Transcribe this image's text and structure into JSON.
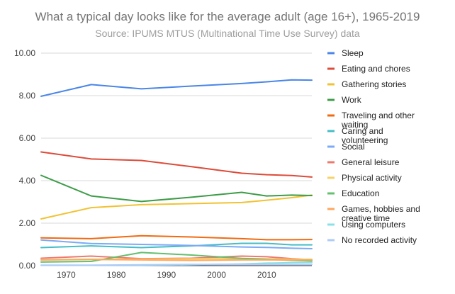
{
  "chart_data": {
    "type": "line",
    "title": "What a typical day looks like for the average adult (age 16+), 1965-2019",
    "subtitle": "Source: IPUMS MTUS (Multinational Time Use Survey) data",
    "xlabel": "",
    "ylabel": "",
    "xlim": [
      1965,
      2019
    ],
    "ylim": [
      0,
      10
    ],
    "y_ticks": [
      "0.00",
      "2.00",
      "4.00",
      "6.00",
      "8.00",
      "10.00"
    ],
    "x_ticks": [
      "1970",
      "1980",
      "1990",
      "2000",
      "2010"
    ],
    "grid": "horizontal",
    "legend_position": "right",
    "x": [
      1965,
      1975,
      1985,
      1995,
      2005,
      2010,
      2015,
      2019
    ],
    "series": [
      {
        "name": "Sleep",
        "color": "#4a86e8",
        "values": [
          7.97,
          8.52,
          8.32,
          8.45,
          8.57,
          8.65,
          8.74,
          8.73
        ]
      },
      {
        "name": "Eating and chores",
        "color": "#dd4b39",
        "values": [
          5.35,
          5.02,
          4.95,
          4.66,
          4.35,
          4.28,
          4.24,
          4.17
        ]
      },
      {
        "name": "Gathering stories",
        "color": "#f1c232",
        "values": [
          2.2,
          2.73,
          2.87,
          2.92,
          2.97,
          3.08,
          3.2,
          3.32
        ]
      },
      {
        "name": "Work",
        "color": "#3d9c48",
        "values": [
          4.25,
          3.28,
          3.02,
          3.22,
          3.45,
          3.28,
          3.32,
          3.3
        ]
      },
      {
        "name": "Traveling and other waiting",
        "color": "#f26a10",
        "values": [
          1.31,
          1.27,
          1.41,
          1.35,
          1.27,
          1.22,
          1.22,
          1.23
        ]
      },
      {
        "name": "Caring and volunteering",
        "color": "#46bdc6",
        "values": [
          0.85,
          0.93,
          0.85,
          0.93,
          1.05,
          1.05,
          0.98,
          0.98
        ]
      },
      {
        "name": "Social",
        "color": "#7baaf7",
        "values": [
          1.21,
          1.04,
          1.0,
          0.95,
          0.88,
          0.86,
          0.82,
          0.8
        ]
      },
      {
        "name": "General leisure",
        "color": "#ee7a6e",
        "values": [
          0.35,
          0.45,
          0.33,
          0.35,
          0.45,
          0.42,
          0.33,
          0.28
        ]
      },
      {
        "name": "Physical activity",
        "color": "#fad165",
        "values": [
          0.27,
          0.3,
          0.3,
          0.32,
          0.34,
          0.32,
          0.3,
          0.3
        ]
      },
      {
        "name": "Education",
        "color": "#63c06f",
        "values": [
          0.17,
          0.2,
          0.62,
          0.5,
          0.34,
          0.3,
          0.25,
          0.22
        ]
      },
      {
        "name": "Games, hobbies and creative time",
        "color": "#ffa65e",
        "values": [
          0.27,
          0.29,
          0.27,
          0.25,
          0.27,
          0.27,
          0.27,
          0.27
        ]
      },
      {
        "name": "Using computers",
        "color": "#88e0e8",
        "values": [
          0.02,
          0.02,
          0.02,
          0.04,
          0.08,
          0.12,
          0.14,
          0.15
        ]
      },
      {
        "name": "No recorded activity",
        "color": "#aecbfa",
        "values": [
          0.02,
          0.02,
          0.04,
          0.06,
          0.06,
          0.06,
          0.06,
          0.06
        ]
      }
    ]
  }
}
